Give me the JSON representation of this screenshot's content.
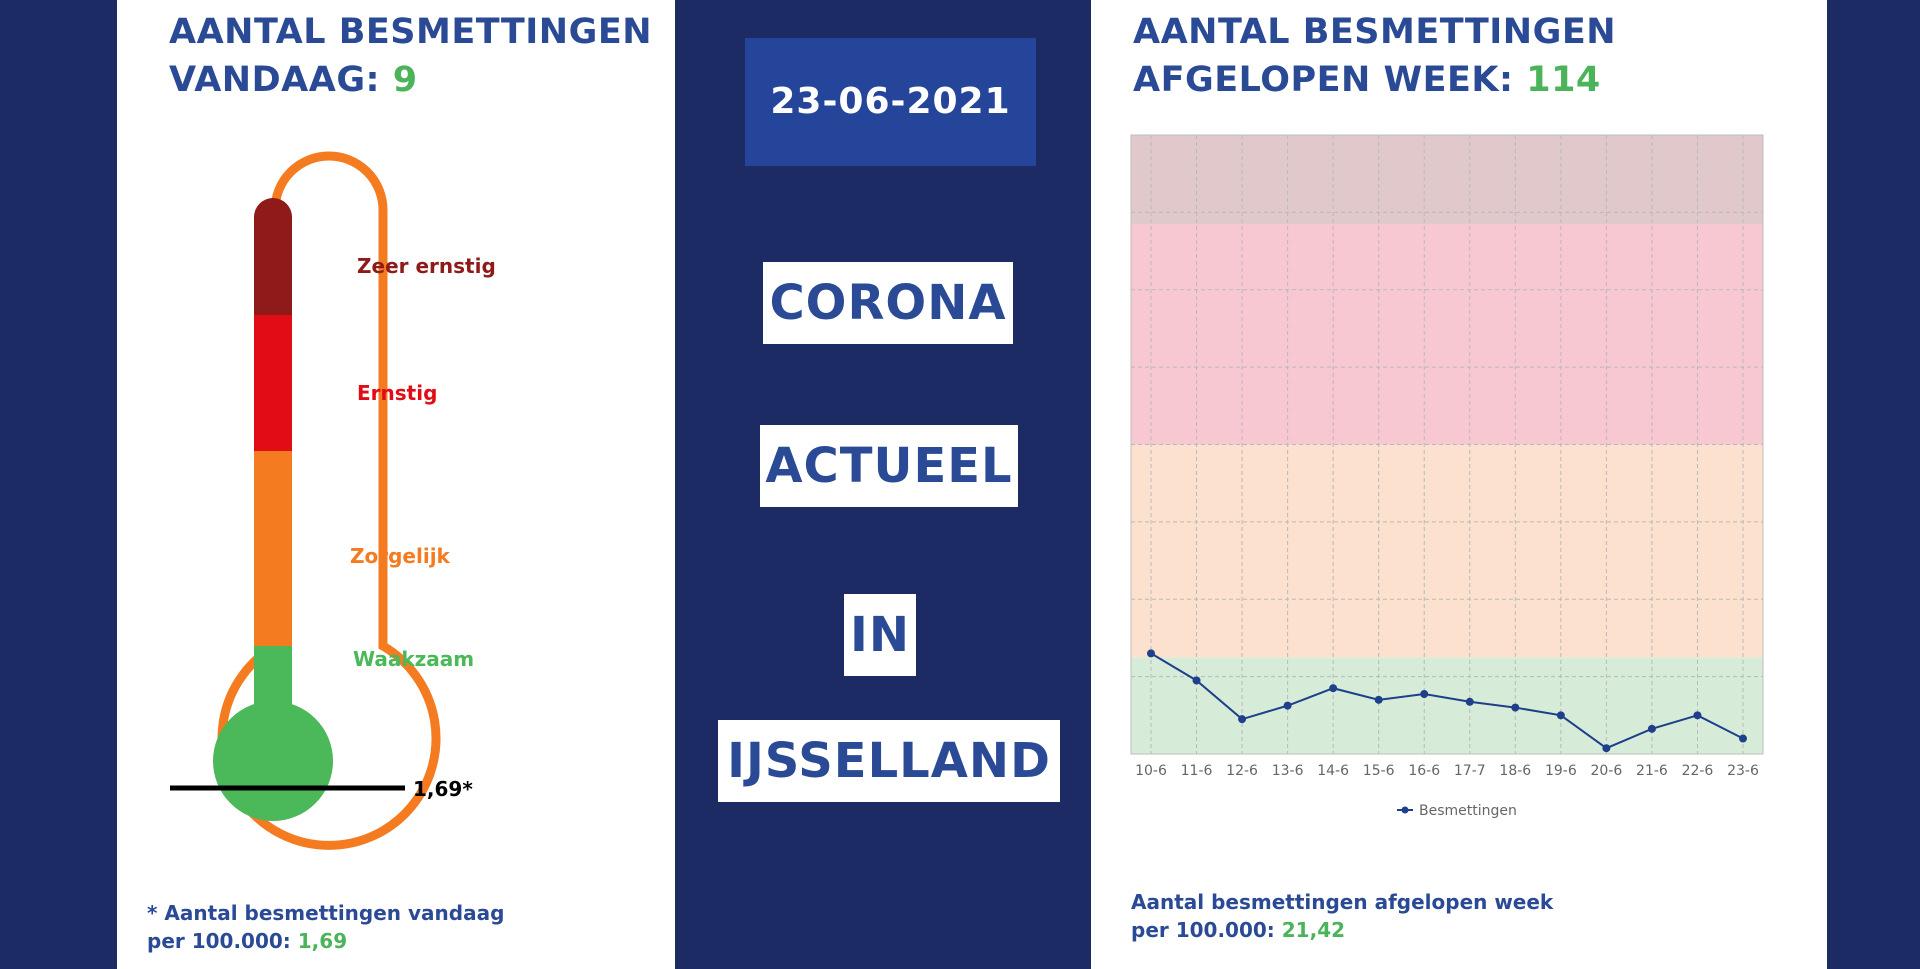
{
  "left": {
    "heading_line1": "AANTAL BESMETTINGEN",
    "heading_prefix": "VANDAAG: ",
    "heading_value": "9",
    "thermometer": {
      "levels": [
        {
          "label": "Zeer ernstig",
          "color": "#8f1a1a"
        },
        {
          "label": "Ernstig",
          "color": "#e20c14"
        },
        {
          "label": "Zorgelijk",
          "color": "#f47b20"
        },
        {
          "label": "Waakzaam",
          "color": "#4bb85a"
        }
      ],
      "outline_color": "#f47b20",
      "marker_label": "1,69*"
    },
    "footnote_line1": "* Aantal besmettingen vandaag",
    "footnote_prefix": "per 100.000: ",
    "footnote_value": "1,69"
  },
  "center": {
    "date": "23-06-2021",
    "labels": [
      "CORONA",
      "ACTUEEL",
      "IN",
      "IJSSELLAND"
    ]
  },
  "right": {
    "heading_line1": "AANTAL BESMETTINGEN",
    "heading_prefix": "AFGELOPEN WEEK: ",
    "heading_value": "114",
    "footnote_line1": "Aantal besmettingen afgelopen week",
    "footnote_prefix": "per 100.000: ",
    "footnote_value": "21,42"
  },
  "chart_data": {
    "type": "line",
    "title": "",
    "xlabel": "",
    "ylabel": "",
    "categories": [
      "10-6",
      "11-6",
      "12-6",
      "13-6",
      "14-6",
      "15-6",
      "16-6",
      "17-7",
      "18-6",
      "19-6",
      "20-6",
      "21-6",
      "22-6",
      "23-6"
    ],
    "series": [
      {
        "name": "Besmettingen",
        "values": [
          26,
          19,
          9,
          12.5,
          17,
          14,
          15.5,
          13.5,
          12,
          10,
          1.5,
          6.5,
          10,
          4
        ],
        "color": "#1e3f8a"
      }
    ],
    "ylim": [
      0,
      160
    ],
    "grid": true,
    "legend": "bottom-center",
    "bands": [
      {
        "from": 0,
        "to": 25,
        "color": "#d6ecd8"
      },
      {
        "from": 25,
        "to": 80,
        "color": "#fbe1ce"
      },
      {
        "from": 80,
        "to": 137,
        "color": "#f7c8d1"
      },
      {
        "from": 137,
        "to": 160,
        "color": "#e1c9cb"
      }
    ]
  }
}
